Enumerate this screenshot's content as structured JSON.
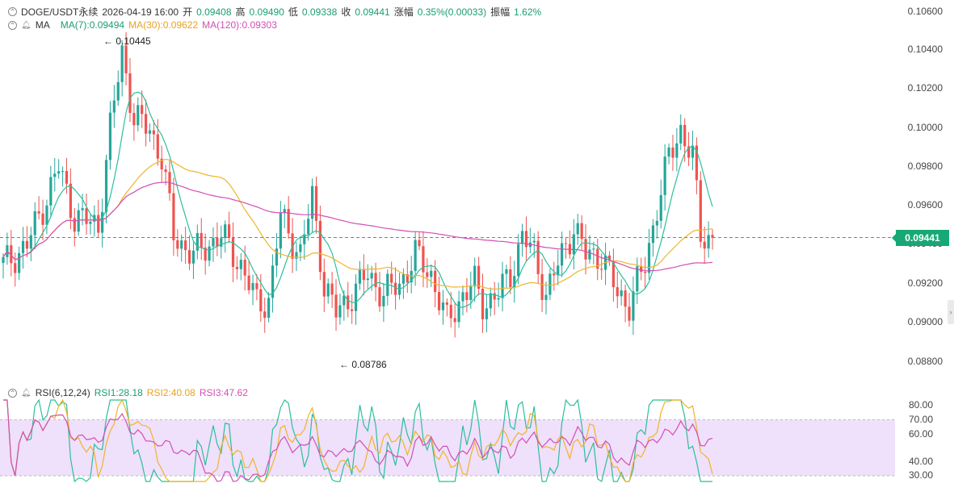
{
  "header": {
    "symbol": "DOGE/USDT永续",
    "time": "2026-04-19 16:00",
    "open_label": "开",
    "open": "0.09408",
    "high_label": "高",
    "high": "0.09490",
    "low_label": "低",
    "low": "0.09338",
    "close_label": "收",
    "close": "0.09441",
    "change_label": "涨幅",
    "change": "0.35%(0.00033)",
    "amp_label": "振幅",
    "amp": "1.62%"
  },
  "ma": {
    "title": "MA",
    "ma7": "MA(7):0.09494",
    "ma30": "MA(30):0.09622",
    "ma120": "MA(120):0.09303"
  },
  "rsi": {
    "title": "RSI(6,12,24)",
    "rsi1": "RSI1:28.18",
    "rsi2": "RSI2:40.08",
    "rsi3": "RSI3:47.62"
  },
  "price_axis": [
    "0.10600",
    "0.10400",
    "0.10200",
    "0.10000",
    "0.09800",
    "0.09600",
    "0.09400",
    "0.09200",
    "0.09000",
    "0.08800"
  ],
  "rsi_axis": [
    "80.00",
    "70.00",
    "60.00",
    "40.00",
    "30.00"
  ],
  "current_price": "0.09441",
  "annotations": {
    "high": "← 0.10445",
    "low": "← 0.08786"
  },
  "colors": {
    "up": "#26a69a",
    "down": "#ef5350",
    "ma7": "#2bbf9c",
    "ma30": "#f0b429",
    "ma120": "#d24fb4",
    "rsi_band": "#efe0fb"
  },
  "chart_data": {
    "type": "candlestick",
    "price_range": [
      0.0876,
      0.106
    ],
    "rsi_range": [
      25,
      85
    ],
    "candle_count": 147,
    "high": 0.10445,
    "low": 0.08786,
    "last": 0.09441
  }
}
